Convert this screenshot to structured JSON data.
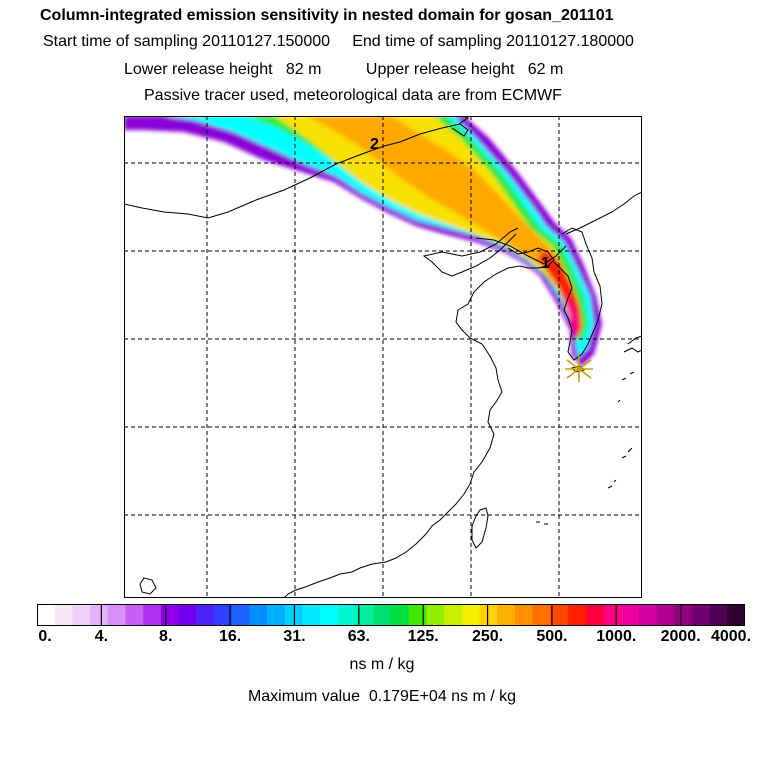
{
  "header": {
    "title": "Column-integrated emission sensitivity in nested domain for gosan_201101",
    "sampling_line": "Start time of sampling 20110127.150000     End time of sampling 20110127.180000",
    "release_line": "Lower release height   82 m          Upper release height   62 m",
    "tracer_line": "Passive tracer used, meteorological data are from ECMWF"
  },
  "map": {
    "labels": [
      {
        "text": "2"
      },
      {
        "text": "1"
      }
    ],
    "receptor": "gosan",
    "colors": {
      "coastline": "#000000",
      "grid": "#000000",
      "receptor_star": "#c8a000"
    }
  },
  "colorbar": {
    "tick_labels": [
      "0.",
      "4.",
      "8.",
      "16.",
      "31.",
      "63.",
      "125.",
      "250.",
      "500.",
      "1000.",
      "2000.",
      "4000."
    ],
    "colors": [
      "#ffffff",
      "#f8e8f8",
      "#f0d0f8",
      "#e8b0f8",
      "#d890f8",
      "#c860f8",
      "#b030f0",
      "#9000e8",
      "#7000f0",
      "#5020f8",
      "#3040ff",
      "#2060ff",
      "#0090ff",
      "#00b0ff",
      "#00d0ff",
      "#00e8ff",
      "#00ffff",
      "#00f8d0",
      "#00f0a0",
      "#00e070",
      "#00e040",
      "#40e800",
      "#90f000",
      "#c8f000",
      "#f0f000",
      "#ffd000",
      "#ffb000",
      "#ff9000",
      "#ff7000",
      "#ff4800",
      "#ff2000",
      "#ff0040",
      "#ff0080",
      "#f000a0",
      "#d000a0",
      "#b00090",
      "#900080",
      "#700070",
      "#500050",
      "#300030"
    ],
    "units": "ns m / kg"
  },
  "footer": {
    "max_value_line": "Maximum value  0.179E+04 ns m / kg"
  }
}
